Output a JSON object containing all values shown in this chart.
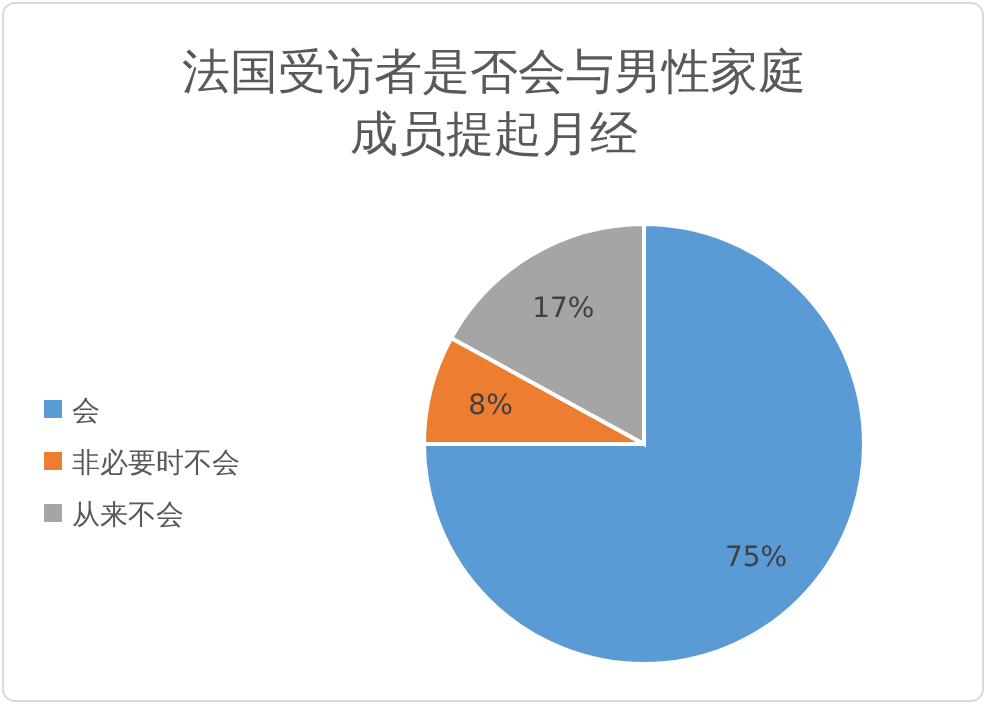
{
  "chart_data": {
    "type": "pie",
    "title": "法国受访者是否会与男性家庭成员提起月经",
    "categories": [
      "会",
      "非必要时不会",
      "从来不会"
    ],
    "values": [
      75,
      8,
      17
    ],
    "colors": [
      "#5b9bd5",
      "#ed7d31",
      "#a5a5a5"
    ],
    "value_labels": [
      "75%",
      "8%",
      "17%"
    ],
    "legend": "left"
  }
}
